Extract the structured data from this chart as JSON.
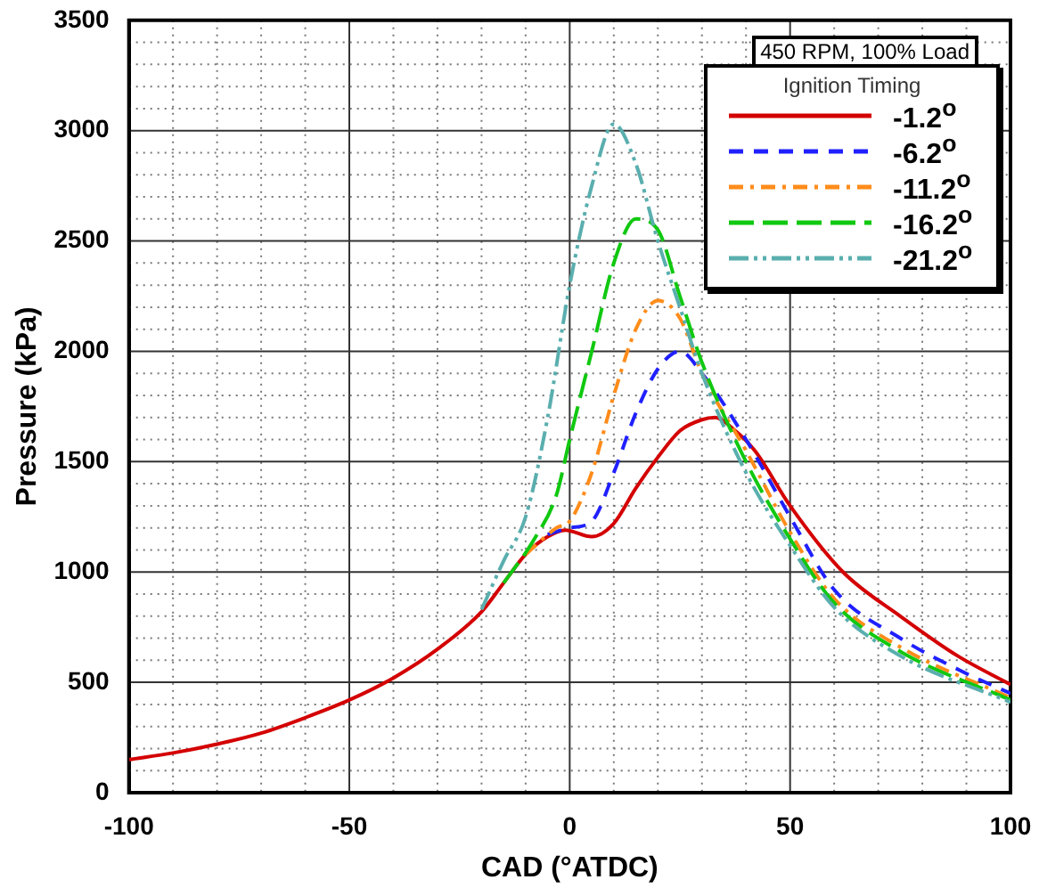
{
  "chart_data": {
    "type": "line",
    "xlabel": "CAD (°ATDC)",
    "ylabel": "Pressure (kPa)",
    "legend_title": "Ignition Timing",
    "annotations": [
      "450 RPM, 100% Load"
    ],
    "xlim": [
      -100,
      100
    ],
    "ylim": [
      0,
      3500
    ],
    "xticks": [
      -100,
      {
        "value": -90,
        "label": null
      },
      {
        "value": -80,
        "label": null
      },
      {
        "value": -70,
        "label": null
      },
      {
        "value": -60,
        "label": null
      },
      -50,
      {
        "value": -40,
        "label": null
      },
      {
        "value": -30,
        "label": null
      },
      {
        "value": -20,
        "label": null
      },
      {
        "value": -10,
        "label": null
      },
      0,
      {
        "value": 10,
        "label": null
      },
      {
        "value": 20,
        "label": null
      },
      {
        "value": 30,
        "label": null
      },
      {
        "value": 40,
        "label": null
      },
      50,
      {
        "value": 60,
        "label": null
      },
      {
        "value": 70,
        "label": null
      },
      {
        "value": 80,
        "label": null
      },
      {
        "value": 90,
        "label": null
      },
      100
    ],
    "yticks": [
      0,
      {
        "value": 100,
        "label": null
      },
      {
        "value": 200,
        "label": null
      },
      {
        "value": 300,
        "label": null
      },
      {
        "value": 400,
        "label": null
      },
      500,
      {
        "value": 600,
        "label": null
      },
      {
        "value": 700,
        "label": null
      },
      {
        "value": 800,
        "label": null
      },
      {
        "value": 900,
        "label": null
      },
      1000,
      {
        "value": 1100,
        "label": null
      },
      {
        "value": 1200,
        "label": null
      },
      {
        "value": 1300,
        "label": null
      },
      {
        "value": 1400,
        "label": null
      },
      1500,
      {
        "value": 1600,
        "label": null
      },
      {
        "value": 1700,
        "label": null
      },
      {
        "value": 1800,
        "label": null
      },
      {
        "value": 1900,
        "label": null
      },
      2000,
      {
        "value": 2100,
        "label": null
      },
      {
        "value": 2200,
        "label": null
      },
      {
        "value": 2300,
        "label": null
      },
      {
        "value": 2400,
        "label": null
      },
      2500,
      {
        "value": 2600,
        "label": null
      },
      {
        "value": 2700,
        "label": null
      },
      {
        "value": 2800,
        "label": null
      },
      {
        "value": 2900,
        "label": null
      },
      3000,
      {
        "value": 3100,
        "label": null
      },
      {
        "value": 3200,
        "label": null
      },
      {
        "value": 3300,
        "label": null
      },
      {
        "value": 3400,
        "label": null
      },
      3500
    ],
    "grid": true,
    "legend": "top right",
    "marker": "none",
    "series": [
      {
        "name": "-1.2$^{o}$",
        "color": "#d40000",
        "line_style": "solid",
        "x": [
          -100,
          -90,
          -80,
          -70,
          -60,
          -50,
          -40,
          -30,
          -20,
          -15,
          -10,
          -5,
          -1,
          5,
          10,
          15,
          20,
          25,
          30,
          33,
          37,
          42,
          50,
          62,
          75,
          88,
          100
        ],
        "values": [
          150,
          180,
          220,
          270,
          340,
          420,
          520,
          650,
          820,
          950,
          1080,
          1160,
          1190,
          1160,
          1220,
          1380,
          1520,
          1640,
          1690,
          1700,
          1650,
          1550,
          1300,
          1000,
          800,
          620,
          490
        ]
      },
      {
        "name": "-6.2$^{o}$",
        "color": "#2020ff",
        "line_style": "dashed",
        "x": [
          -5,
          0,
          5,
          10,
          15,
          20,
          25,
          30,
          40,
          50,
          60,
          75,
          90,
          100
        ],
        "values": [
          1170,
          1200,
          1230,
          1450,
          1720,
          1920,
          2000,
          1900,
          1600,
          1250,
          920,
          700,
          540,
          450
        ]
      },
      {
        "name": "-11.2$^{o}$",
        "color": "#ff8c1a",
        "line_style": "dashed",
        "x": [
          -10,
          -3,
          0,
          5,
          10,
          15,
          20,
          25,
          30,
          40,
          50,
          60,
          75,
          100
        ],
        "values": [
          1080,
          1200,
          1230,
          1450,
          1800,
          2100,
          2230,
          2150,
          1900,
          1550,
          1180,
          880,
          660,
          430
        ]
      },
      {
        "name": "-16.2$^{o}$",
        "color": "#10c810",
        "line_style": "dashed",
        "x": [
          -15,
          -8,
          -3,
          0,
          5,
          10,
          15,
          20,
          25,
          30,
          40,
          50,
          60,
          75,
          100
        ],
        "values": [
          950,
          1150,
          1350,
          1600,
          2000,
          2400,
          2600,
          2550,
          2250,
          1950,
          1500,
          1150,
          860,
          640,
          420
        ]
      },
      {
        "name": "-21.2$^{o}$",
        "color": "#5aaeae",
        "line_style": "dashed",
        "x": [
          -20,
          -15,
          -10,
          -5,
          0,
          5,
          10,
          15,
          20,
          25,
          30,
          40,
          50,
          60,
          75,
          100
        ],
        "values": [
          830,
          1050,
          1250,
          1700,
          2300,
          2750,
          3030,
          2850,
          2500,
          2200,
          1900,
          1450,
          1120,
          840,
          620,
          410
        ]
      }
    ]
  }
}
